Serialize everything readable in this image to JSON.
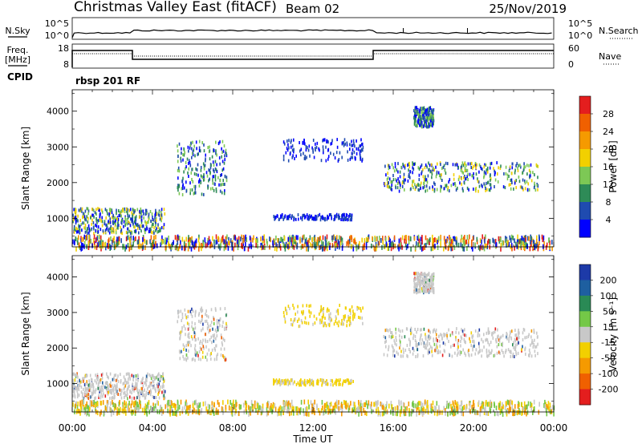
{
  "header": {
    "title": "Christmas Valley East (fitACF)",
    "beam": "Beam 02",
    "date": "25/Nov/2019"
  },
  "strip1": {
    "left_label": "N.Sky",
    "left_ticks": [
      "10^5",
      "10^0"
    ],
    "right_label": "N.Search",
    "right_ticks": [
      "10^5",
      "10^0"
    ]
  },
  "strip2": {
    "left_label_line1": "Freq.",
    "left_label_line2": "[MHz]",
    "left_ticks": [
      "18",
      "8"
    ],
    "right_label": "Nave",
    "right_ticks": [
      "60",
      "0"
    ],
    "cpid_label": "CPID",
    "cpid_value": "rbsp 201 RF"
  },
  "chart_data": [
    {
      "type": "heatmap",
      "name": "power",
      "ylabel": "Slant Range [km]",
      "yticks": [
        1000,
        2000,
        3000,
        4000
      ],
      "ylim": [
        200,
        4600
      ],
      "xlim": [
        0,
        24
      ],
      "colorbar": {
        "label": "Power [dB]",
        "ticks": [
          "4",
          "8",
          "12",
          "16",
          "20",
          "24",
          "28"
        ],
        "colors": [
          "#0000ff",
          "#1f4bb0",
          "#2e8b57",
          "#7dc855",
          "#f2d000",
          "#f59a00",
          "#f06000",
          "#e41e1e"
        ]
      },
      "echo_regions": [
        {
          "t0": 0.0,
          "t1": 4.6,
          "r0": 620,
          "r1": 1320,
          "level": "strong"
        },
        {
          "t0": 5.2,
          "t1": 7.7,
          "r0": 1700,
          "r1": 3200,
          "level": "medium"
        },
        {
          "t0": 10.5,
          "t1": 14.5,
          "r0": 2650,
          "r1": 3250,
          "level": "weak"
        },
        {
          "t0": 10.0,
          "t1": 14.0,
          "r0": 1000,
          "r1": 1150,
          "level": "weak"
        },
        {
          "t0": 15.5,
          "t1": 23.2,
          "r0": 1800,
          "r1": 2600,
          "level": "strong"
        },
        {
          "t0": 17.0,
          "t1": 18.0,
          "r0": 3600,
          "r1": 4150,
          "level": "medium"
        },
        {
          "t0": 0.0,
          "t1": 24.0,
          "r0": 200,
          "r1": 550,
          "level": "mixed"
        }
      ]
    },
    {
      "type": "heatmap",
      "name": "velocity",
      "ylabel": "Slant Range [km]",
      "yticks": [
        1000,
        2000,
        3000,
        4000
      ],
      "ylim": [
        200,
        4600
      ],
      "xlim": [
        0,
        24
      ],
      "xlabel": "Time UT",
      "xticks": [
        "00:00",
        "04:00",
        "08:00",
        "12:00",
        "16:00",
        "20:00",
        "00:00"
      ],
      "colorbar": {
        "label": "Velocity [m s⁻¹]",
        "ticks": [
          "200",
          "100",
          "50",
          "15",
          "-15",
          "-50",
          "-100",
          "-200"
        ],
        "colors": [
          "#1d3aa8",
          "#1e5fa0",
          "#2a8a55",
          "#74c847",
          "#c8c8c8",
          "#f2d000",
          "#f59a00",
          "#f06000",
          "#e41e1e"
        ]
      }
    }
  ]
}
